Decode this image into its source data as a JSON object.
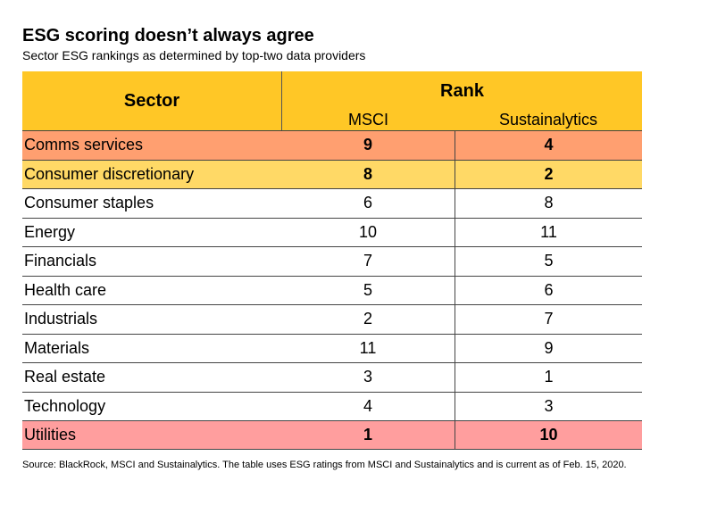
{
  "title": "ESG scoring doesn’t always agree",
  "subtitle": "Sector ESG rankings as determined by top-two data providers",
  "source": "Source: BlackRock, MSCI and Sustainalytics. The table uses ESG ratings from MSCI and Sustainalytics and is current as of Feb. 15, 2020.",
  "colors": {
    "header": "#FFC726",
    "comms_services": "#FF9F70",
    "consumer_discretionary": "#FFD966",
    "utilities": "#FF9E9E"
  },
  "chart_data": {
    "type": "table",
    "title": "ESG scoring doesn’t always agree",
    "subtitle": "Sector ESG rankings as determined by top-two data providers",
    "header": {
      "sector": "Sector",
      "rank": "Rank",
      "msci": "MSCI",
      "sustainalytics": "Sustainalytics"
    },
    "rows": [
      {
        "sector": "Comms services",
        "msci": "9",
        "sustainalytics": "4",
        "highlight": "#FF9F70",
        "bold": true
      },
      {
        "sector": "Consumer discretionary",
        "msci": "8",
        "sustainalytics": "2",
        "highlight": "#FFD966",
        "bold": true
      },
      {
        "sector": "Consumer staples",
        "msci": "6",
        "sustainalytics": "8",
        "highlight": "",
        "bold": false
      },
      {
        "sector": "Energy",
        "msci": "10",
        "sustainalytics": "11",
        "highlight": "",
        "bold": false
      },
      {
        "sector": "Financials",
        "msci": "7",
        "sustainalytics": "5",
        "highlight": "",
        "bold": false
      },
      {
        "sector": "Health care",
        "msci": "5",
        "sustainalytics": "6",
        "highlight": "",
        "bold": false
      },
      {
        "sector": "Industrials",
        "msci": "2",
        "sustainalytics": "7",
        "highlight": "",
        "bold": false
      },
      {
        "sector": "Materials",
        "msci": "11",
        "sustainalytics": "9",
        "highlight": "",
        "bold": false
      },
      {
        "sector": "Real estate",
        "msci": "3",
        "sustainalytics": "1",
        "highlight": "",
        "bold": false
      },
      {
        "sector": "Technology",
        "msci": "4",
        "sustainalytics": "3",
        "highlight": "",
        "bold": false
      },
      {
        "sector": "Utilities",
        "msci": "1",
        "sustainalytics": "10",
        "highlight": "#FF9E9E",
        "bold": true
      }
    ]
  }
}
